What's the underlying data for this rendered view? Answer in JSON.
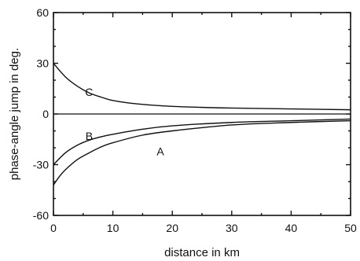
{
  "chart_data": {
    "type": "line",
    "title": "",
    "xlabel": "distance in km",
    "ylabel": "phase-angle jump in deg.",
    "xlim": [
      0,
      50
    ],
    "ylim": [
      -60,
      60
    ],
    "x_ticks": [
      0,
      10,
      20,
      30,
      40,
      50
    ],
    "y_ticks": [
      60,
      30,
      0,
      -30,
      -60
    ],
    "x_tick_labels": [
      "0",
      "10",
      "20",
      "30",
      "40",
      "50"
    ],
    "y_tick_labels": [
      "60",
      "30",
      "0",
      "-30",
      "-60"
    ],
    "zero_line": true,
    "grid": false,
    "series": [
      {
        "name": "C",
        "x": [
          0,
          2,
          4,
          6,
          8,
          10,
          14,
          20,
          30,
          40,
          50
        ],
        "values": [
          30,
          22,
          16.5,
          12.5,
          10,
          8,
          6,
          4.5,
          3.5,
          3,
          2.5
        ]
      },
      {
        "name": "B",
        "x": [
          0,
          2,
          4,
          6,
          8,
          10,
          15,
          20,
          30,
          40,
          50
        ],
        "values": [
          -30,
          -23,
          -18.5,
          -15.5,
          -13.5,
          -12,
          -9,
          -7,
          -5,
          -4,
          -3
        ]
      },
      {
        "name": "A",
        "x": [
          0,
          1,
          2,
          4,
          6,
          8,
          10,
          15,
          20,
          30,
          40,
          50
        ],
        "values": [
          -42,
          -37,
          -33,
          -27,
          -23,
          -19.5,
          -17,
          -12.5,
          -10,
          -6.5,
          -5,
          -4
        ]
      }
    ],
    "curve_labels": [
      {
        "text": "C",
        "x": 6,
        "y": 13
      },
      {
        "text": "B",
        "x": 6,
        "y": -13
      },
      {
        "text": "A",
        "x": 18,
        "y": -22
      }
    ]
  }
}
